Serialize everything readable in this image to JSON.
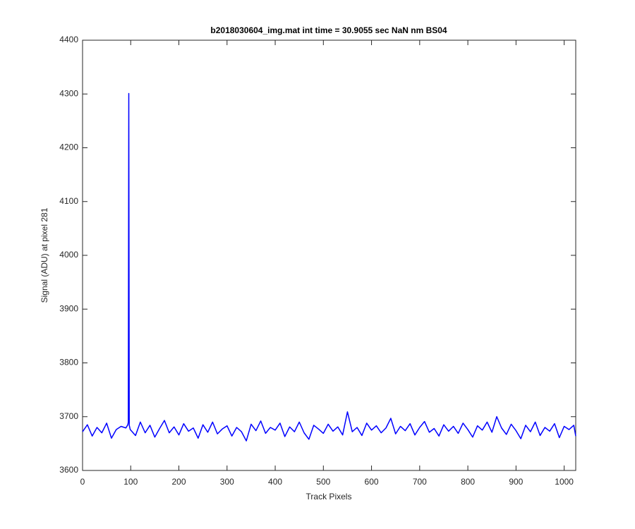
{
  "chart_data": {
    "type": "line",
    "title": "b2018030604_img.mat int time = 30.9055 sec  NaN nm BS04",
    "x_label": "Track Pixels",
    "y_label": "Signal (ADU) at pixel 281",
    "xlim": [
      0,
      1024
    ],
    "ylim": [
      3600,
      4400
    ],
    "xticks": [
      0,
      100,
      200,
      300,
      400,
      500,
      600,
      700,
      800,
      900,
      1000
    ],
    "yticks": [
      3600,
      3700,
      3800,
      3900,
      4000,
      4100,
      4200,
      4300,
      4400
    ],
    "grid": false,
    "x": [
      0,
      10,
      20,
      30,
      40,
      50,
      60,
      70,
      80,
      90,
      94,
      95,
      96,
      97,
      99,
      110,
      120,
      130,
      140,
      150,
      160,
      170,
      180,
      190,
      200,
      210,
      220,
      230,
      240,
      250,
      260,
      270,
      280,
      290,
      300,
      310,
      320,
      330,
      340,
      350,
      360,
      370,
      380,
      390,
      400,
      410,
      420,
      430,
      440,
      450,
      460,
      470,
      480,
      490,
      500,
      510,
      520,
      530,
      540,
      550,
      560,
      570,
      580,
      590,
      600,
      610,
      620,
      630,
      640,
      650,
      660,
      670,
      680,
      690,
      700,
      710,
      720,
      730,
      740,
      750,
      760,
      770,
      780,
      790,
      800,
      810,
      820,
      830,
      840,
      850,
      860,
      870,
      880,
      890,
      900,
      910,
      920,
      930,
      940,
      950,
      960,
      970,
      980,
      990,
      1000,
      1010,
      1020,
      1024
    ],
    "series": [
      {
        "name": "Signal",
        "color": "#0000ff",
        "values": [
          3672,
          3685,
          3664,
          3680,
          3670,
          3688,
          3660,
          3676,
          3682,
          3679,
          3685,
          3690,
          4301,
          3684,
          3676,
          3665,
          3690,
          3670,
          3684,
          3662,
          3678,
          3693,
          3670,
          3681,
          3666,
          3687,
          3673,
          3679,
          3660,
          3685,
          3671,
          3690,
          3668,
          3677,
          3683,
          3664,
          3680,
          3672,
          3655,
          3686,
          3674,
          3692,
          3669,
          3680,
          3675,
          3688,
          3663,
          3681,
          3672,
          3690,
          3670,
          3658,
          3684,
          3677,
          3669,
          3686,
          3673,
          3681,
          3666,
          3709,
          3672,
          3680,
          3665,
          3688,
          3675,
          3683,
          3670,
          3679,
          3697,
          3668,
          3682,
          3674,
          3687,
          3666,
          3680,
          3691,
          3671,
          3678,
          3664,
          3685,
          3673,
          3682,
          3669,
          3688,
          3676,
          3662,
          3683,
          3675,
          3690,
          3671,
          3700,
          3679,
          3667,
          3686,
          3674,
          3659,
          3684,
          3672,
          3690,
          3665,
          3680,
          3673,
          3687,
          3661,
          3682,
          3676,
          3684,
          3664
        ]
      }
    ]
  }
}
